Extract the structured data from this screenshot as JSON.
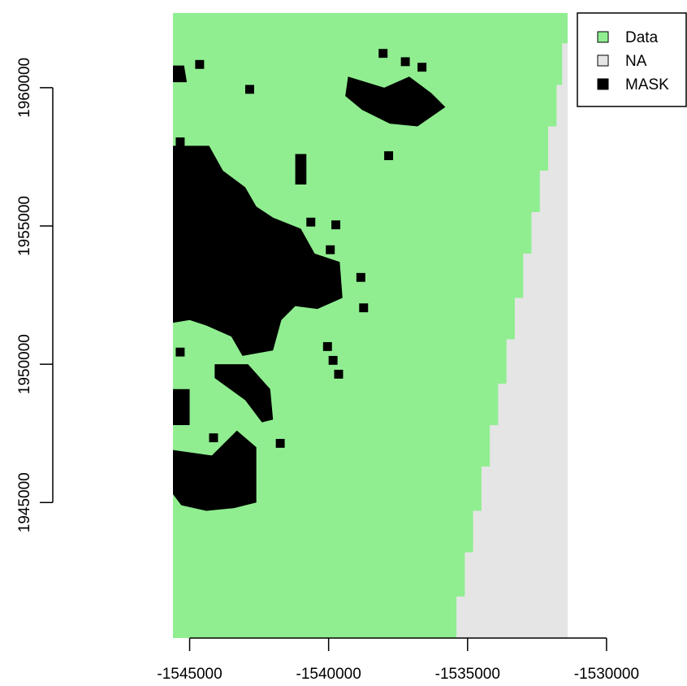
{
  "chart_data": {
    "type": "heatmap",
    "title": "",
    "xlabel": "",
    "ylabel": "",
    "xlim": [
      -1545600,
      -1531400
    ],
    "ylim": [
      1940100,
      1962700
    ],
    "x_ticks": [
      -1545000,
      -1540000,
      -1535000,
      -1530000
    ],
    "x_tick_labels": [
      "-1545000",
      "-1540000",
      "-1535000",
      "-1530000"
    ],
    "y_ticks": [
      1945000,
      1950000,
      1955000,
      1960000
    ],
    "y_tick_labels": [
      "1945000",
      "1950000",
      "1955000",
      "1960000"
    ],
    "legend": {
      "position": "top-right",
      "entries": [
        {
          "label": "Data",
          "color": "#90EE90"
        },
        {
          "label": "NA",
          "color": "#E5E5E5"
        },
        {
          "label": "MASK",
          "color": "#000000"
        }
      ]
    },
    "na_boundary": [
      [
        -1535600,
        1940100
      ],
      [
        -1535400,
        1941600
      ],
      [
        -1535100,
        1943200
      ],
      [
        -1534800,
        1944700
      ],
      [
        -1534500,
        1946300
      ],
      [
        -1534200,
        1947800
      ],
      [
        -1533900,
        1949300
      ],
      [
        -1533600,
        1950900
      ],
      [
        -1533300,
        1952400
      ],
      [
        -1533000,
        1954000
      ],
      [
        -1532700,
        1955500
      ],
      [
        -1532400,
        1957000
      ],
      [
        -1532100,
        1958600
      ],
      [
        -1531800,
        1960100
      ],
      [
        -1531600,
        1961600
      ],
      [
        -1531400,
        1962200
      ]
    ],
    "mask_regions": [
      [
        [
          -1545600,
          1957900
        ],
        [
          -1544300,
          1957900
        ],
        [
          -1543800,
          1957000
        ],
        [
          -1543000,
          1956400
        ],
        [
          -1542600,
          1955700
        ],
        [
          -1542000,
          1955300
        ],
        [
          -1541000,
          1954900
        ],
        [
          -1540500,
          1954000
        ],
        [
          -1539600,
          1953700
        ],
        [
          -1539500,
          1952400
        ],
        [
          -1540400,
          1952000
        ],
        [
          -1541200,
          1952100
        ],
        [
          -1541700,
          1951600
        ],
        [
          -1542000,
          1950500
        ],
        [
          -1543100,
          1950300
        ],
        [
          -1543500,
          1951000
        ],
        [
          -1544400,
          1951400
        ],
        [
          -1545000,
          1951600
        ],
        [
          -1545600,
          1951500
        ]
      ],
      [
        [
          -1545600,
          1949100
        ],
        [
          -1545000,
          1949100
        ],
        [
          -1545000,
          1947800
        ],
        [
          -1545600,
          1947800
        ]
      ],
      [
        [
          -1545600,
          1946900
        ],
        [
          -1544200,
          1946700
        ],
        [
          -1543300,
          1947600
        ],
        [
          -1542600,
          1947000
        ],
        [
          -1542600,
          1945000
        ],
        [
          -1543400,
          1944800
        ],
        [
          -1544400,
          1944700
        ],
        [
          -1545300,
          1944900
        ],
        [
          -1545600,
          1945300
        ]
      ],
      [
        [
          -1544100,
          1950000
        ],
        [
          -1542900,
          1950000
        ],
        [
          -1542100,
          1949100
        ],
        [
          -1542000,
          1948000
        ],
        [
          -1542400,
          1947900
        ],
        [
          -1543000,
          1948700
        ],
        [
          -1544100,
          1949500
        ]
      ],
      [
        [
          -1539300,
          1960400
        ],
        [
          -1538000,
          1960000
        ],
        [
          -1537100,
          1960400
        ],
        [
          -1536300,
          1959800
        ],
        [
          -1535800,
          1959300
        ],
        [
          -1536800,
          1958600
        ],
        [
          -1537800,
          1958700
        ],
        [
          -1538800,
          1959200
        ],
        [
          -1539400,
          1959700
        ]
      ],
      [
        [
          -1545600,
          1960800
        ],
        [
          -1545200,
          1960800
        ],
        [
          -1545100,
          1960200
        ],
        [
          -1545600,
          1960200
        ]
      ],
      [
        [
          -1541200,
          1957600
        ],
        [
          -1540800,
          1957600
        ],
        [
          -1540800,
          1956500
        ],
        [
          -1541200,
          1956500
        ]
      ]
    ],
    "mask_cells": [
      [
        -1544800,
        1961000
      ],
      [
        -1543000,
        1960100
      ],
      [
        -1545500,
        1958200
      ],
      [
        -1540800,
        1955300
      ],
      [
        -1539900,
        1955200
      ],
      [
        -1540100,
        1954300
      ],
      [
        -1539000,
        1953300
      ],
      [
        -1538900,
        1952200
      ],
      [
        -1540200,
        1950800
      ],
      [
        -1540000,
        1950300
      ],
      [
        -1539800,
        1949800
      ],
      [
        -1545500,
        1950600
      ],
      [
        -1541900,
        1947300
      ],
      [
        -1538000,
        1957700
      ],
      [
        -1538200,
        1961400
      ],
      [
        -1537400,
        1961100
      ],
      [
        -1536800,
        1960900
      ],
      [
        -1544300,
        1947500
      ]
    ]
  }
}
